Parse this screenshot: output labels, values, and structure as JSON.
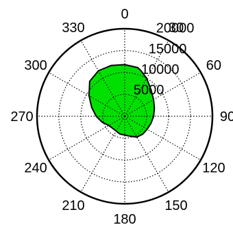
{
  "chart_data": {
    "type": "area",
    "projection": "polar",
    "title": "",
    "angle_direction": "clockwise",
    "zero_angle_position": "top",
    "grid": true,
    "grid_style": "dotted",
    "fill_color": "#00e000",
    "outline_color": "#000000",
    "radial_max": 20000,
    "radial_ticks": [
      5000,
      10000,
      15000,
      20000
    ],
    "radial_tick_labels": [
      "5000",
      "10000",
      "15000",
      "20000"
    ],
    "angular_ticks": [
      0,
      30,
      60,
      90,
      120,
      150,
      180,
      210,
      240,
      270,
      300,
      330
    ],
    "angular_tick_labels": [
      "0",
      "30",
      "60",
      "90",
      "120",
      "150",
      "180",
      "210",
      "240",
      "270",
      "300",
      "330"
    ],
    "series": [
      {
        "theta": [
          0,
          15,
          20,
          30,
          45,
          60,
          75,
          90,
          105,
          120,
          135,
          150,
          165,
          180,
          195,
          210,
          225,
          240,
          255,
          270,
          285,
          300,
          315,
          330,
          345
        ],
        "r": [
          11800,
          11500,
          11000,
          10000,
          8500,
          7600,
          7000,
          6600,
          6200,
          5900,
          5800,
          5500,
          4700,
          4300,
          4200,
          3900,
          3900,
          4200,
          5300,
          6500,
          7800,
          9400,
          11300,
          12000,
          12000
        ]
      }
    ]
  }
}
